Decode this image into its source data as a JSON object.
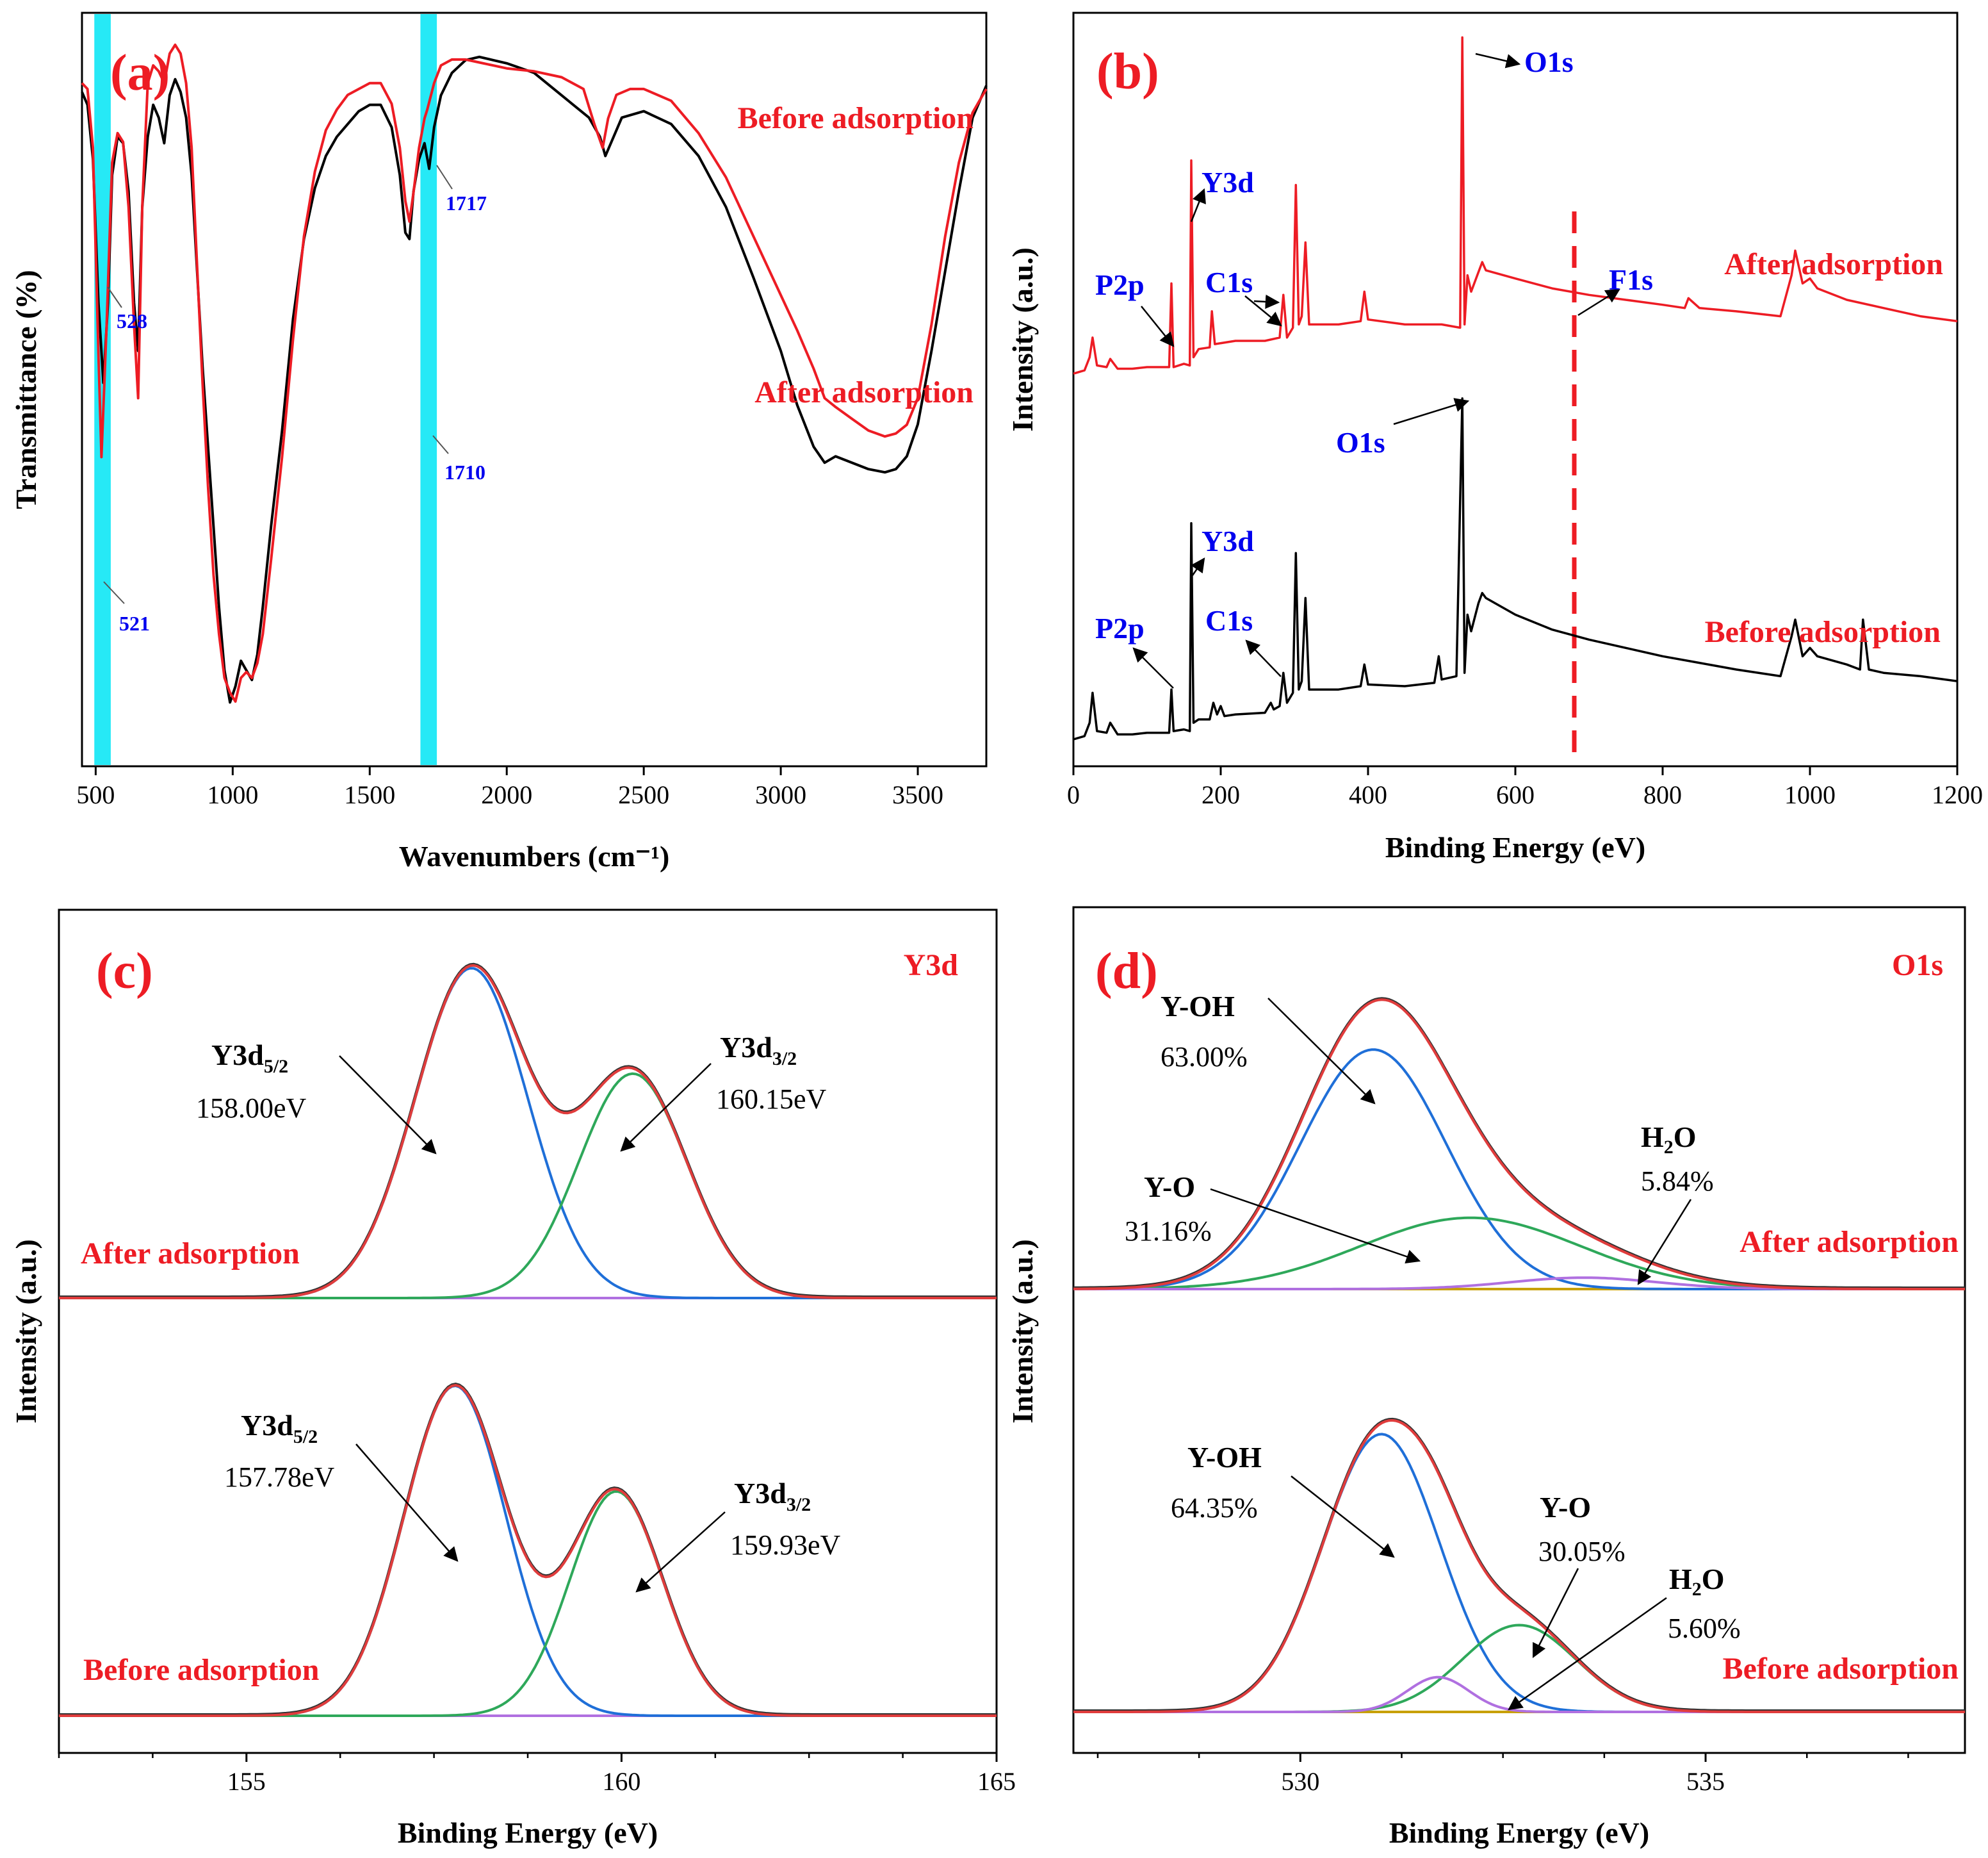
{
  "colors": {
    "red": "#ed1c24",
    "blue": "#0000ee",
    "black": "#000000",
    "cyan": "#00e5f5",
    "fit_blue": "#1f6fd8",
    "fit_green": "#2ea85a",
    "fit_red": "#e03c3c",
    "fit_purple": "#b070e0",
    "baseline_tan": "#c8a000",
    "label_grey": "#1a1a1a"
  },
  "chart_data": [
    {
      "panel": "(a)",
      "type": "line",
      "xlabel": "Wavenumbers (cm⁻¹)",
      "ylabel": "Transmittance (%)",
      "xlim": [
        450,
        3750
      ],
      "xticks": [
        500,
        1000,
        1500,
        2000,
        2500,
        3000,
        3500
      ],
      "xtick_labels": [
        "500",
        "1000",
        "1500",
        "2000",
        "2500",
        "3000",
        "3500"
      ],
      "highlight_bands": [
        [
          495,
          555
        ],
        [
          1685,
          1745
        ]
      ],
      "series": [
        {
          "name": "Before adsorption",
          "label": "Before adsorption",
          "color": "black",
          "ylim": [
            -1.25,
            1.1
          ],
          "x": [
            450,
            470,
            490,
            510,
            528,
            545,
            560,
            580,
            600,
            620,
            640,
            655,
            670,
            690,
            710,
            730,
            750,
            770,
            790,
            810,
            830,
            850,
            870,
            890,
            910,
            930,
            950,
            970,
            990,
            1010,
            1030,
            1050,
            1070,
            1090,
            1110,
            1140,
            1180,
            1220,
            1260,
            1300,
            1340,
            1380,
            1420,
            1460,
            1500,
            1540,
            1580,
            1610,
            1630,
            1645,
            1660,
            1680,
            1700,
            1717,
            1735,
            1760,
            1800,
            1850,
            1900,
            1950,
            2000,
            2100,
            2200,
            2300,
            2340,
            2360,
            2380,
            2420,
            2500,
            2600,
            2700,
            2800,
            2900,
            3000,
            3060,
            3120,
            3160,
            3200,
            3260,
            3320,
            3380,
            3420,
            3460,
            3500,
            3550,
            3600,
            3650,
            3700,
            3750
          ],
          "y": [
            0.86,
            0.82,
            0.65,
            0.2,
            -0.05,
            0.2,
            0.6,
            0.72,
            0.7,
            0.55,
            0.2,
            0.05,
            0.5,
            0.72,
            0.82,
            0.78,
            0.7,
            0.85,
            0.9,
            0.86,
            0.78,
            0.6,
            0.3,
            0.0,
            -0.25,
            -0.5,
            -0.75,
            -0.95,
            -1.05,
            -1.0,
            -0.92,
            -0.95,
            -0.98,
            -0.9,
            -0.75,
            -0.5,
            -0.2,
            0.15,
            0.4,
            0.56,
            0.66,
            0.72,
            0.76,
            0.8,
            0.82,
            0.82,
            0.75,
            0.6,
            0.42,
            0.4,
            0.55,
            0.65,
            0.7,
            0.62,
            0.75,
            0.85,
            0.92,
            0.96,
            0.97,
            0.96,
            0.95,
            0.92,
            0.85,
            0.78,
            0.72,
            0.66,
            0.7,
            0.78,
            0.8,
            0.76,
            0.66,
            0.5,
            0.28,
            0.05,
            -0.12,
            -0.25,
            -0.3,
            -0.28,
            -0.3,
            -0.32,
            -0.33,
            -0.32,
            -0.28,
            -0.18,
            0.05,
            0.3,
            0.55,
            0.78,
            0.88
          ]
        },
        {
          "name": "After adsorption",
          "label": "After adsorption",
          "color": "red",
          "ylim": [
            -1.6,
            0.95
          ],
          "x": [
            450,
            470,
            490,
            510,
            521,
            540,
            560,
            580,
            600,
            620,
            640,
            655,
            670,
            690,
            710,
            730,
            750,
            770,
            790,
            810,
            830,
            850,
            870,
            890,
            910,
            930,
            950,
            970,
            990,
            1010,
            1030,
            1050,
            1070,
            1090,
            1110,
            1140,
            1180,
            1220,
            1260,
            1300,
            1340,
            1380,
            1420,
            1460,
            1500,
            1540,
            1580,
            1610,
            1630,
            1645,
            1660,
            1680,
            1700,
            1710,
            1735,
            1760,
            1800,
            1850,
            1900,
            1950,
            2000,
            2100,
            2200,
            2280,
            2320,
            2350,
            2370,
            2400,
            2450,
            2500,
            2600,
            2700,
            2800,
            2900,
            3000,
            3060,
            3120,
            3160,
            3200,
            3260,
            3320,
            3380,
            3420,
            3460,
            3500,
            3550,
            3600,
            3650,
            3700,
            3750
          ],
          "y": [
            0.72,
            0.7,
            0.5,
            -0.2,
            -0.55,
            -0.1,
            0.45,
            0.55,
            0.52,
            0.3,
            -0.1,
            -0.35,
            0.3,
            0.72,
            0.78,
            0.76,
            0.72,
            0.82,
            0.85,
            0.82,
            0.72,
            0.5,
            0.1,
            -0.3,
            -0.65,
            -0.95,
            -1.15,
            -1.3,
            -1.35,
            -1.38,
            -1.3,
            -1.28,
            -1.3,
            -1.25,
            -1.15,
            -0.9,
            -0.55,
            -0.15,
            0.2,
            0.42,
            0.56,
            0.63,
            0.68,
            0.7,
            0.72,
            0.72,
            0.65,
            0.5,
            0.32,
            0.25,
            0.35,
            0.5,
            0.6,
            0.63,
            0.72,
            0.78,
            0.8,
            0.8,
            0.79,
            0.78,
            0.77,
            0.76,
            0.74,
            0.7,
            0.58,
            0.5,
            0.6,
            0.68,
            0.7,
            0.7,
            0.66,
            0.55,
            0.4,
            0.2,
            0.0,
            -0.12,
            -0.25,
            -0.35,
            -0.38,
            -0.42,
            -0.46,
            -0.48,
            -0.47,
            -0.44,
            -0.35,
            -0.1,
            0.2,
            0.45,
            0.62,
            0.7
          ]
        }
      ],
      "annotations": [
        {
          "text": "(a)",
          "color": "red"
        },
        {
          "text": "528",
          "x": 528,
          "series": 0,
          "color": "blue"
        },
        {
          "text": "1717",
          "x": 1717,
          "series": 0,
          "color": "blue"
        },
        {
          "text": "521",
          "x": 521,
          "series": 1,
          "color": "blue"
        },
        {
          "text": "1710",
          "x": 1710,
          "series": 1,
          "color": "blue"
        }
      ]
    },
    {
      "panel": "(b)",
      "type": "line",
      "xlabel": "Binding Energy (eV)",
      "ylabel": "Intensity (a.u.)",
      "xlim": [
        0,
        1200
      ],
      "xticks": [
        0,
        200,
        400,
        600,
        800,
        1000,
        1200
      ],
      "xtick_labels": [
        "0",
        "200",
        "400",
        "600",
        "800",
        "1000",
        "1200"
      ],
      "dashed_line_x": 680,
      "series": [
        {
          "name": "After adsorption",
          "label": "After adsorption",
          "color": "red",
          "ylim": [
            -0.3,
            2.2
          ],
          "x": [
            0,
            15,
            22,
            26,
            32,
            45,
            50,
            60,
            80,
            100,
            130,
            133,
            136,
            150,
            158,
            160,
            163,
            170,
            185,
            188,
            192,
            220,
            260,
            280,
            285,
            290,
            298,
            302,
            306,
            310,
            315,
            320,
            360,
            390,
            395,
            400,
            450,
            500,
            525,
            528,
            531,
            535,
            540,
            550,
            555,
            560,
            600,
            650,
            700,
            750,
            800,
            830,
            835,
            850,
            900,
            960,
            975,
            980,
            990,
            1000,
            1010,
            1050,
            1100,
            1150,
            1200
          ],
          "y": [
            0.0,
            0.02,
            0.1,
            0.22,
            0.05,
            0.04,
            0.09,
            0.03,
            0.03,
            0.04,
            0.04,
            0.55,
            0.04,
            0.06,
            0.05,
            1.3,
            0.1,
            0.15,
            0.16,
            0.38,
            0.18,
            0.2,
            0.2,
            0.22,
            0.48,
            0.22,
            0.28,
            1.15,
            0.3,
            0.35,
            0.8,
            0.3,
            0.3,
            0.32,
            0.5,
            0.33,
            0.3,
            0.3,
            0.28,
            2.05,
            0.3,
            0.6,
            0.5,
            0.62,
            0.68,
            0.63,
            0.58,
            0.52,
            0.48,
            0.45,
            0.42,
            0.4,
            0.46,
            0.4,
            0.38,
            0.35,
            0.6,
            0.75,
            0.55,
            0.58,
            0.52,
            0.45,
            0.4,
            0.35,
            0.32
          ]
        },
        {
          "name": "Before adsorption",
          "label": "Before adsorption",
          "color": "black",
          "ylim": [
            -0.1,
            2.25
          ],
          "x": [
            0,
            15,
            22,
            26,
            32,
            45,
            50,
            60,
            80,
            100,
            130,
            133,
            136,
            150,
            158,
            160,
            163,
            170,
            185,
            190,
            195,
            200,
            205,
            220,
            260,
            268,
            272,
            280,
            285,
            290,
            298,
            302,
            306,
            310,
            315,
            320,
            360,
            390,
            395,
            400,
            450,
            490,
            496,
            500,
            520,
            528,
            531,
            535,
            540,
            550,
            555,
            560,
            600,
            650,
            700,
            750,
            800,
            850,
            900,
            960,
            975,
            980,
            990,
            1000,
            1010,
            1050,
            1068,
            1072,
            1080,
            1100,
            1150,
            1200
          ],
          "y": [
            0.0,
            0.02,
            0.1,
            0.28,
            0.05,
            0.04,
            0.1,
            0.03,
            0.03,
            0.04,
            0.04,
            0.3,
            0.05,
            0.06,
            0.05,
            1.3,
            0.1,
            0.12,
            0.12,
            0.22,
            0.15,
            0.2,
            0.14,
            0.15,
            0.16,
            0.22,
            0.18,
            0.2,
            0.4,
            0.22,
            0.28,
            1.12,
            0.3,
            0.35,
            0.85,
            0.3,
            0.3,
            0.32,
            0.45,
            0.33,
            0.32,
            0.34,
            0.5,
            0.36,
            0.38,
            2.05,
            0.4,
            0.75,
            0.65,
            0.82,
            0.88,
            0.85,
            0.75,
            0.66,
            0.6,
            0.55,
            0.5,
            0.46,
            0.42,
            0.38,
            0.62,
            0.72,
            0.5,
            0.55,
            0.5,
            0.45,
            0.42,
            0.72,
            0.42,
            0.4,
            0.38,
            0.35
          ]
        }
      ],
      "annotations": [
        {
          "text": "(b)",
          "color": "red"
        },
        {
          "text": "O1s",
          "color": "blue"
        },
        {
          "text": "Y3d",
          "color": "blue"
        },
        {
          "text": "P2p",
          "color": "blue"
        },
        {
          "text": "C1s",
          "color": "blue"
        },
        {
          "text": "F1s",
          "color": "blue"
        },
        {
          "text": "O1s",
          "color": "blue"
        },
        {
          "text": "Y3d",
          "color": "blue"
        },
        {
          "text": "P2p",
          "color": "blue"
        },
        {
          "text": "C1s",
          "color": "blue"
        }
      ]
    },
    {
      "panel": "(c)",
      "type": "line",
      "title": "Y3d",
      "xlabel": "Binding Energy (eV)",
      "ylabel": "Intensity (a.u.)",
      "xlim": [
        152.5,
        165
      ],
      "xticks": [
        155,
        160,
        165
      ],
      "xtick_labels": [
        "155",
        "160",
        "165"
      ],
      "minor_ticks": [
        152.5,
        153.75,
        156.25,
        157.5,
        158.75,
        161.25,
        162.5,
        163.75
      ],
      "series_groups": [
        {
          "label": "After adsorption",
          "peaks": [
            {
              "name": "Y3d5/2",
              "center": 158.0,
              "height": 1.0,
              "sigma": 0.75,
              "color": "fit_blue"
            },
            {
              "name": "Y3d3/2",
              "center": 160.15,
              "height": 0.68,
              "sigma": 0.72,
              "color": "fit_green"
            }
          ],
          "peak_labels": [
            {
              "main": "Y3d",
              "sub": "5/2",
              "value": "158.00eV"
            },
            {
              "main": "Y3d",
              "sub": "3/2",
              "value": "160.15eV"
            }
          ]
        },
        {
          "label": "Before adsorption",
          "peaks": [
            {
              "name": "Y3d5/2",
              "center": 157.78,
              "height": 1.0,
              "sigma": 0.68,
              "color": "fit_blue"
            },
            {
              "name": "Y3d3/2",
              "center": 159.93,
              "height": 0.68,
              "sigma": 0.62,
              "color": "fit_green"
            }
          ],
          "peak_labels": [
            {
              "main": "Y3d",
              "sub": "5/2",
              "value": "157.78eV"
            },
            {
              "main": "Y3d",
              "sub": "3/2",
              "value": "159.93eV"
            }
          ]
        }
      ],
      "annotations": [
        {
          "text": "(c)",
          "color": "red"
        }
      ]
    },
    {
      "panel": "(d)",
      "type": "line",
      "title": "O1s",
      "xlabel": "Binding Energy (eV)",
      "ylabel": "Intensity (a.u.)",
      "xlim": [
        527.2,
        538.2
      ],
      "xticks": [
        530,
        535
      ],
      "xtick_labels": [
        "530",
        "535"
      ],
      "minor_ticks": [
        527.5,
        528.75,
        531.25,
        532.5,
        533.75,
        536.25,
        537.5
      ],
      "series_groups": [
        {
          "label": "After adsorption",
          "peaks": [
            {
              "name": "Y-OH",
              "center": 530.9,
              "height": 0.84,
              "sigma": 0.9,
              "color": "fit_blue"
            },
            {
              "name": "Y-O",
              "center": 532.1,
              "height": 0.25,
              "sigma": 1.35,
              "color": "fit_green"
            },
            {
              "name": "H2O",
              "center": 533.5,
              "height": 0.04,
              "sigma": 0.9,
              "color": "fit_purple"
            }
          ],
          "peak_labels": [
            {
              "main": "Y-OH",
              "value": "63.00%"
            },
            {
              "main": "Y-O",
              "value": "31.16%"
            },
            {
              "main": "H",
              "sub": "2",
              "tail": "O",
              "value": "5.84%"
            }
          ]
        },
        {
          "label": "Before adsorption",
          "peaks": [
            {
              "name": "Y-OH",
              "center": 531.0,
              "height": 0.8,
              "sigma": 0.72,
              "color": "fit_blue"
            },
            {
              "name": "Y-O",
              "center": 532.7,
              "height": 0.25,
              "sigma": 0.7,
              "color": "fit_green"
            },
            {
              "name": "H2O",
              "center": 531.7,
              "height": 0.1,
              "sigma": 0.38,
              "color": "fit_purple"
            }
          ],
          "peak_labels": [
            {
              "main": "Y-OH",
              "value": "64.35%"
            },
            {
              "main": "Y-O",
              "value": "30.05%"
            },
            {
              "main": "H",
              "sub": "2",
              "tail": "O",
              "value": "5.60%"
            }
          ]
        }
      ],
      "annotations": [
        {
          "text": "(d)",
          "color": "red"
        }
      ]
    }
  ]
}
